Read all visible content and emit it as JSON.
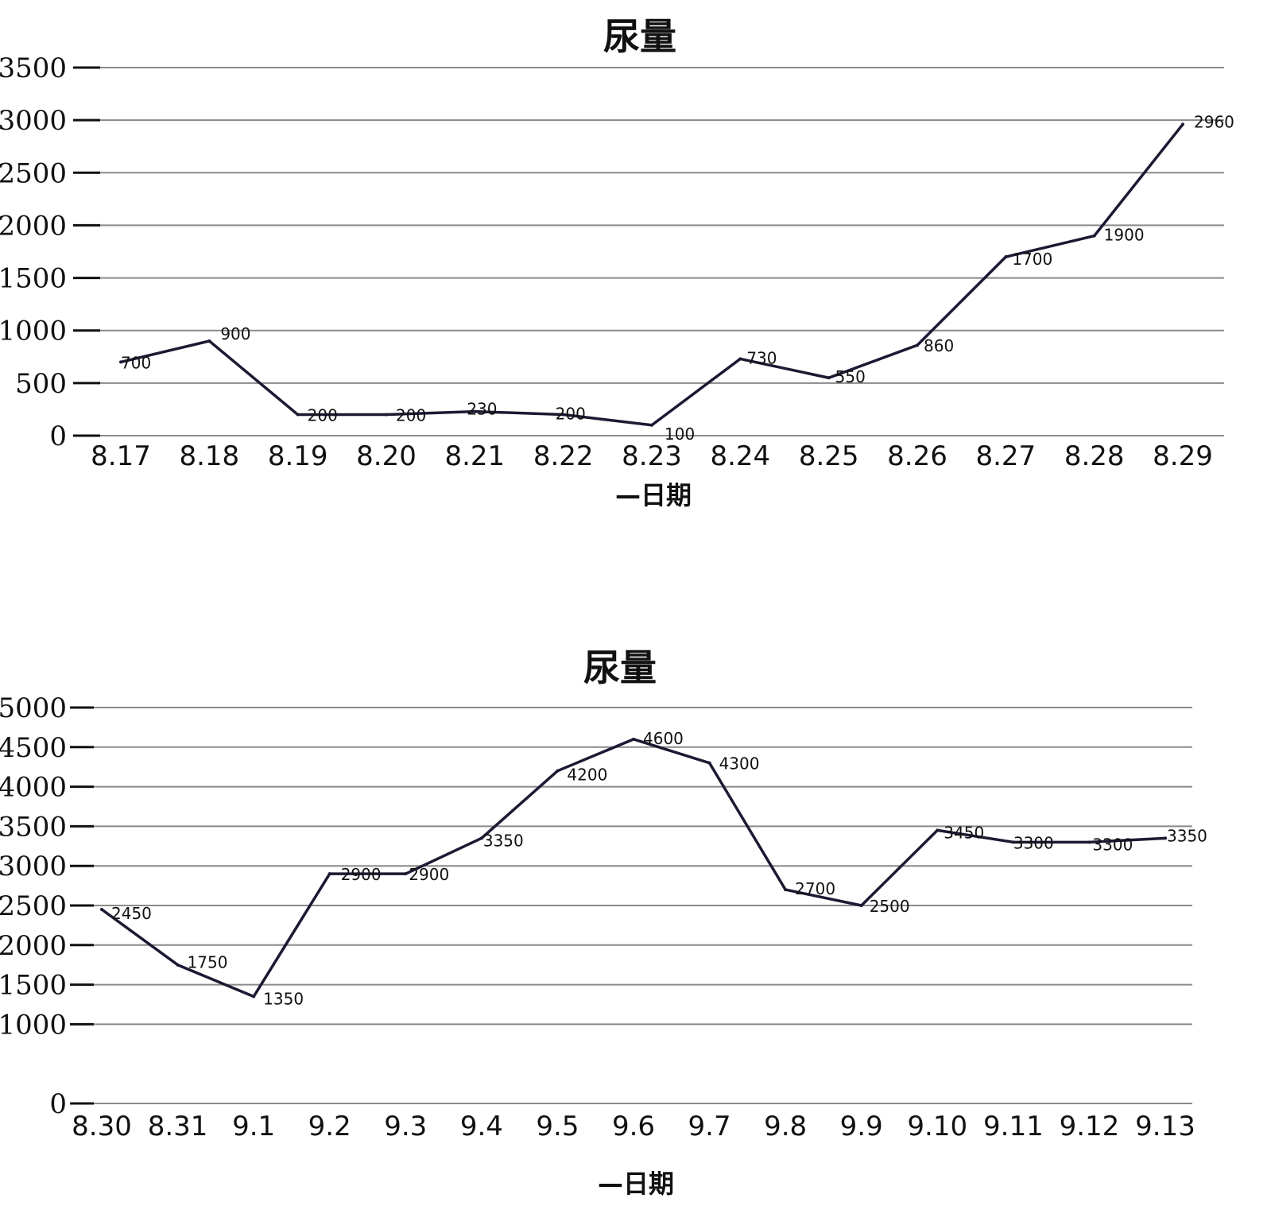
{
  "charts": [
    {
      "title": "尿量",
      "xlabel": "—日期",
      "chart_data": {
        "type": "line",
        "title": "尿量",
        "xlabel": "—日期",
        "ylabel": "",
        "ylim": [
          0,
          3500
        ],
        "yticks": [
          0,
          500,
          1000,
          1500,
          2000,
          2500,
          3000,
          3500
        ],
        "grid": true,
        "categories": [
          "8.17",
          "8.18",
          "8.19",
          "8.20",
          "8.21",
          "8.22",
          "8.23",
          "8.24",
          "8.25",
          "8.26",
          "8.27",
          "8.28",
          "8.29"
        ],
        "series": [
          {
            "values": [
              700,
              900,
              200,
              200,
              230,
              200,
              100,
              730,
              550,
              860,
              1700,
              1900,
              2960
            ],
            "color": "#1a1a33"
          }
        ]
      }
    },
    {
      "title": "尿量",
      "xlabel": "—日期",
      "chart_data": {
        "type": "line",
        "title": "尿量",
        "xlabel": "—日期",
        "ylabel": "",
        "ylim": [
          0,
          5000
        ],
        "yticks": [
          0,
          1000,
          1500,
          2000,
          2500,
          3000,
          3500,
          4000,
          4500,
          5000
        ],
        "grid": true,
        "categories": [
          "8.30",
          "8.31",
          "9.1",
          "9.2",
          "9.3",
          "9.4",
          "9.5",
          "9.6",
          "9.7",
          "9.8",
          "9.9",
          "9.10",
          "9.11",
          "9.12",
          "9.13"
        ],
        "series": [
          {
            "values": [
              2450,
              1750,
              1350,
              2900,
              2900,
              3350,
              4200,
              4600,
              4300,
              2700,
              2500,
              3450,
              3300,
              3300,
              3350
            ],
            "color": "#1a1a33"
          }
        ]
      }
    }
  ]
}
